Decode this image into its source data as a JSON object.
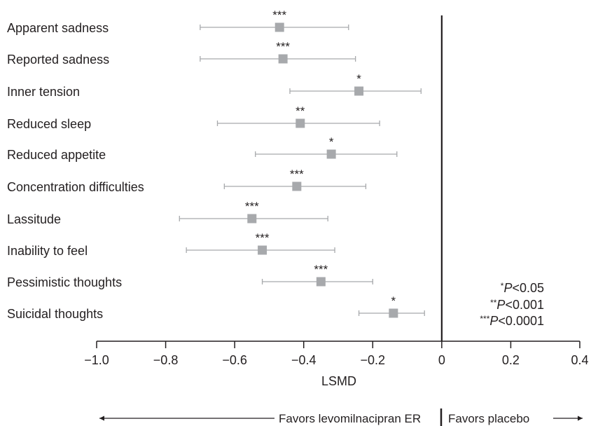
{
  "chart_data": {
    "type": "forest",
    "xlabel": "LSMD",
    "xlim": [
      -1.0,
      0.4
    ],
    "xticks": [
      "−1.0",
      "−0.8",
      "−0.6",
      "−0.4",
      "−0.2",
      "0",
      "0.2",
      "0.4"
    ],
    "xtick_values": [
      -1.0,
      -0.8,
      -0.6,
      -0.4,
      -0.2,
      0,
      0.2,
      0.4
    ],
    "reference_line": 0,
    "items": [
      {
        "label": "Apparent sadness",
        "estimate": -0.47,
        "lower": -0.7,
        "upper": -0.27,
        "sig": "***"
      },
      {
        "label": "Reported sadness",
        "estimate": -0.46,
        "lower": -0.7,
        "upper": -0.25,
        "sig": "***"
      },
      {
        "label": "Inner tension",
        "estimate": -0.24,
        "lower": -0.44,
        "upper": -0.06,
        "sig": "*"
      },
      {
        "label": "Reduced sleep",
        "estimate": -0.41,
        "lower": -0.65,
        "upper": -0.18,
        "sig": "**"
      },
      {
        "label": "Reduced appetite",
        "estimate": -0.32,
        "lower": -0.54,
        "upper": -0.13,
        "sig": "*"
      },
      {
        "label": "Concentration difficulties",
        "estimate": -0.42,
        "lower": -0.63,
        "upper": -0.22,
        "sig": "***"
      },
      {
        "label": "Lassitude",
        "estimate": -0.55,
        "lower": -0.76,
        "upper": -0.33,
        "sig": "***"
      },
      {
        "label": "Inability to feel",
        "estimate": -0.52,
        "lower": -0.74,
        "upper": -0.31,
        "sig": "***"
      },
      {
        "label": "Pessimistic thoughts",
        "estimate": -0.35,
        "lower": -0.52,
        "upper": -0.2,
        "sig": "***"
      },
      {
        "label": "Suicidal thoughts",
        "estimate": -0.14,
        "lower": -0.24,
        "upper": -0.05,
        "sig": "*"
      }
    ],
    "legend": [
      {
        "stars": "*",
        "p": "P",
        "text": "<0.05"
      },
      {
        "stars": "**",
        "p": "P",
        "text": "<0.001"
      },
      {
        "stars": "***",
        "p": "P",
        "text": "<0.0001"
      }
    ],
    "favors_left": "Favors levomilnacipran ER",
    "favors_right": "Favors placebo",
    "colors": {
      "marker": "#a7a9ac",
      "ci": "#a7a9ac",
      "axis": "#231f20",
      "text": "#231f20"
    }
  }
}
